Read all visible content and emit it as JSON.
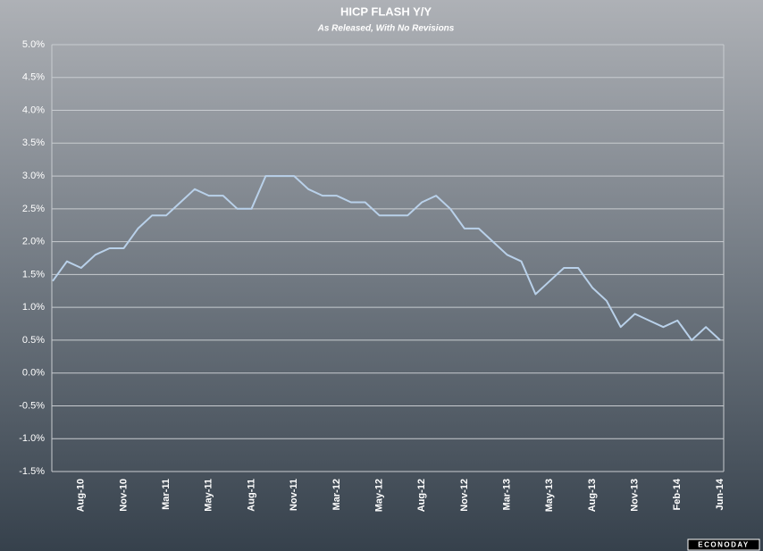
{
  "chart_data": {
    "type": "line",
    "title": "HICP FLASH Y/Y",
    "subtitle": "As Released, With No Revisions",
    "source_logo": "ECONODAY",
    "categories": [
      null,
      null,
      "Aug-10",
      null,
      null,
      "Nov-10",
      null,
      null,
      "Mar-11",
      null,
      null,
      "May-11",
      null,
      null,
      "Aug-11",
      null,
      null,
      "Nov-11",
      null,
      null,
      "Mar-12",
      null,
      null,
      "May-12",
      null,
      null,
      "Aug-12",
      null,
      null,
      "Nov-12",
      null,
      null,
      "Mar-13",
      null,
      null,
      "May-13",
      null,
      null,
      "Aug-13",
      null,
      null,
      "Nov-13",
      null,
      null,
      "Feb-14",
      null,
      null,
      "Jun-14"
    ],
    "series": [
      {
        "name": "HICP Flash Y/Y",
        "color": "#b9d1ea",
        "values": [
          1.4,
          1.7,
          1.6,
          1.8,
          1.9,
          1.9,
          2.2,
          2.4,
          2.4,
          2.6,
          2.8,
          2.7,
          2.7,
          2.5,
          2.5,
          3.0,
          3.0,
          3.0,
          2.8,
          2.7,
          2.7,
          2.6,
          2.6,
          2.4,
          2.4,
          2.4,
          2.6,
          2.7,
          2.5,
          2.2,
          2.2,
          2.0,
          1.8,
          1.7,
          1.2,
          1.4,
          1.6,
          1.6,
          1.3,
          1.1,
          0.7,
          0.9,
          0.8,
          0.7,
          0.8,
          0.5,
          0.7,
          0.5
        ]
      }
    ],
    "ylim": [
      -1.5,
      5
    ],
    "yticks": [
      {
        "value": -1.5,
        "label": "-1.5%"
      },
      {
        "value": -1,
        "label": "-1.0%"
      },
      {
        "value": -0.5,
        "label": "-0.5%"
      },
      {
        "value": 0,
        "label": "0.0%"
      },
      {
        "value": 0.5,
        "label": "0.5%"
      },
      {
        "value": 1,
        "label": "1.0%"
      },
      {
        "value": 1.5,
        "label": "1.5%"
      },
      {
        "value": 2,
        "label": "2.0%"
      },
      {
        "value": 2.5,
        "label": "2.5%"
      },
      {
        "value": 3,
        "label": "3.0%"
      },
      {
        "value": 3.5,
        "label": "3.5%"
      },
      {
        "value": 4,
        "label": "4.0%"
      },
      {
        "value": 4.5,
        "label": "4.5%"
      },
      {
        "value": 5,
        "label": "5.0%"
      }
    ],
    "grid": true
  }
}
